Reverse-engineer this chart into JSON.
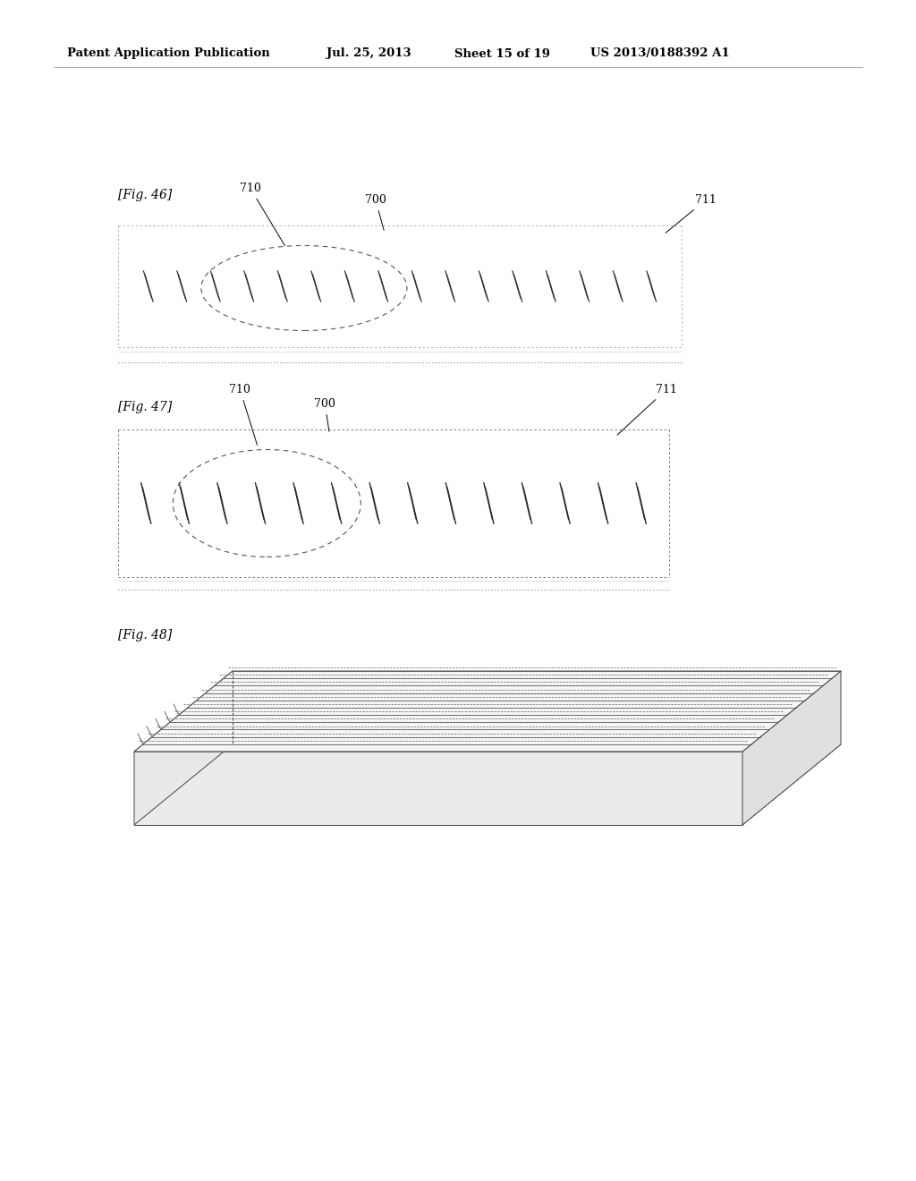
{
  "bg_color": "#ffffff",
  "header_text": "Patent Application Publication",
  "header_date": "Jul. 25, 2013",
  "header_sheet": "Sheet 15 of 19",
  "header_patent": "US 2013/0188392 A1",
  "fig46_label": "[Fig. 46]",
  "fig47_label": "[Fig. 47]",
  "fig48_label": "[Fig. 48]",
  "label_700": "700",
  "label_710": "710",
  "label_711": "711",
  "header_line_color": "#aaaaaa",
  "draw_color": "#444444"
}
